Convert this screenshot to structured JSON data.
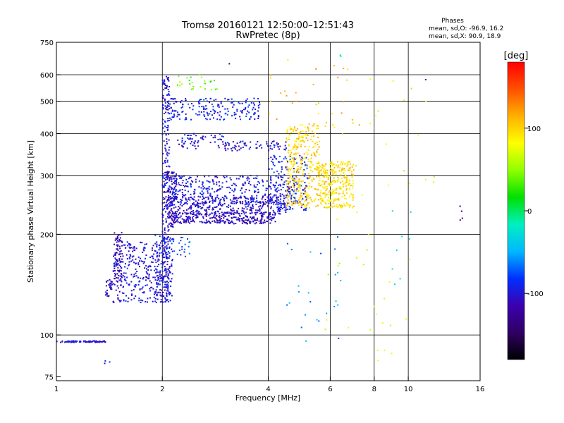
{
  "chart_data": {
    "type": "scatter",
    "title": "Tromsø 20160121 12:50:00–12:51:43",
    "subtitle": "RwPretec (8p)",
    "xlabel": "Frequency [MHz]",
    "ylabel": "Stationary phase Virtual Height [km]",
    "x_scale": "log",
    "y_scale": "log",
    "xlim": [
      1,
      16
    ],
    "ylim": [
      73,
      750
    ],
    "x_ticks": [
      1,
      2,
      4,
      6,
      8,
      10,
      16
    ],
    "x_gridlines": [
      2,
      4,
      6,
      8,
      10
    ],
    "y_ticks": [
      75,
      100,
      200,
      300,
      400,
      500,
      600,
      750
    ],
    "y_gridlines": [
      100,
      200,
      300,
      400,
      500,
      600
    ],
    "grid": true,
    "info_box": {
      "title": "Phases",
      "line1": "mean, sd,O: -96.9, 16.2",
      "line2": "mean, sd,X:  90.9, 18.9"
    },
    "colorbar": {
      "label": "[deg]",
      "range": [
        -180,
        180
      ],
      "ticks": [
        -100,
        0,
        100
      ],
      "colormap": [
        "#000000",
        "#2f0063",
        "#3c00b0",
        "#0030ff",
        "#00b8ff",
        "#00f0c0",
        "#00e000",
        "#90ff00",
        "#ffff00",
        "#ffb000",
        "#ff5000",
        "#ff0000"
      ]
    },
    "series": [
      {
        "x": [
          1.0,
          1.38
        ],
        "y": [
          96,
          95
        ],
        "phase": -105,
        "n": 80
      },
      {
        "x": [
          1.36,
          1.42
        ],
        "y": [
          82,
          84
        ],
        "phase": -100,
        "n": 3
      },
      {
        "x": [
          1.38,
          1.44
        ],
        "y": [
          130,
          148
        ],
        "phase": -110,
        "n": 30
      },
      {
        "x": [
          1.46,
          1.54
        ],
        "y": [
          140,
          205
        ],
        "phase": -115,
        "n": 70
      },
      {
        "x": [
          1.45,
          2.1
        ],
        "y": [
          125,
          190
        ],
        "phase": -100,
        "n": 320
      },
      {
        "x": [
          1.9,
          2.14
        ],
        "y": [
          125,
          200
        ],
        "phase": -95,
        "n": 90
      },
      {
        "x": [
          2.0,
          2.1
        ],
        "y": [
          130,
          600
        ],
        "phase": -100,
        "n": 240
      },
      {
        "x": [
          2.0,
          2.2
        ],
        "y": [
          210,
          310
        ],
        "phase": -110,
        "n": 120
      },
      {
        "x": [
          2.1,
          4.2
        ],
        "y": [
          215,
          232
        ],
        "phase": -112,
        "n": 280
      },
      {
        "x": [
          2.1,
          4.5
        ],
        "y": [
          230,
          260
        ],
        "phase": -105,
        "n": 320
      },
      {
        "x": [
          2.1,
          4.8
        ],
        "y": [
          245,
          300
        ],
        "phase": -98,
        "n": 340
      },
      {
        "x": [
          4.0,
          5.2
        ],
        "y": [
          235,
          345
        ],
        "phase": -90,
        "n": 160
      },
      {
        "x": [
          4.5,
          5.6
        ],
        "y": [
          240,
          430
        ],
        "phase": 100,
        "n": 320
      },
      {
        "x": [
          5.5,
          7.0
        ],
        "y": [
          240,
          330
        ],
        "phase": 95,
        "n": 300
      },
      {
        "x": [
          2.1,
          3.8
        ],
        "y": [
          440,
          510
        ],
        "phase": -90,
        "n": 180
      },
      {
        "x": [
          2.2,
          3.0
        ],
        "y": [
          360,
          400
        ],
        "phase": -100,
        "n": 60
      },
      {
        "x": [
          3.0,
          4.5
        ],
        "y": [
          355,
          380
        ],
        "phase": -105,
        "n": 70
      },
      {
        "x": [
          2.2,
          2.9
        ],
        "y": [
          540,
          600
        ],
        "phase": 40,
        "n": 25
      },
      {
        "x": [
          2.1,
          2.4
        ],
        "y": [
          170,
          200
        ],
        "phase": -80,
        "n": 25
      },
      {
        "x": [
          4.0,
          7.5
        ],
        "y": [
          420,
          680
        ],
        "phase": 110,
        "n": 30
      },
      {
        "x": [
          5.5,
          12.0
        ],
        "y": [
          80,
          600
        ],
        "phase": 70,
        "n": 50
      },
      {
        "x": [
          4.5,
          6.5
        ],
        "y": [
          90,
          200
        ],
        "phase": -60,
        "n": 25
      },
      {
        "x": [
          6.3,
          6.5
        ],
        "y": [
          670,
          690
        ],
        "phase": -20,
        "n": 2
      },
      {
        "x": [
          3.1,
          3.2
        ],
        "y": [
          640,
          660
        ],
        "phase": -120,
        "n": 1
      },
      {
        "x": [
          11.2,
          11.3
        ],
        "y": [
          575,
          590
        ],
        "phase": -120,
        "n": 1
      },
      {
        "x": [
          14.0,
          14.3
        ],
        "y": [
          220,
          245
        ],
        "phase": -130,
        "n": 4
      },
      {
        "x": [
          9.0,
          10.2
        ],
        "y": [
          140,
          250
        ],
        "phase": -30,
        "n": 8
      }
    ]
  }
}
